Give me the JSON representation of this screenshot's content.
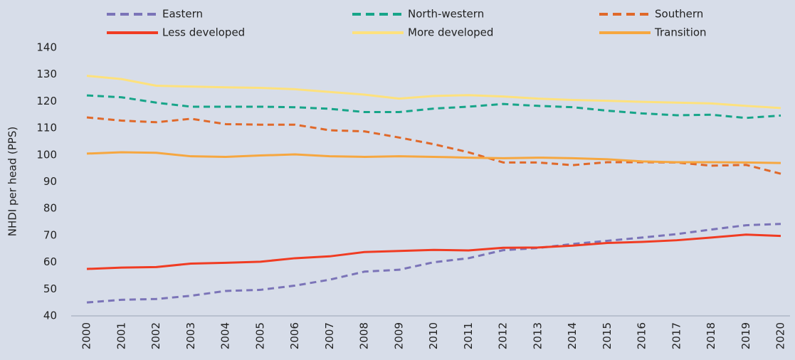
{
  "chart_data": {
    "type": "line",
    "y_label": "NHDI per head (PPS)",
    "categories": [
      "2000",
      "2001",
      "2002",
      "2003",
      "2004",
      "2005",
      "2006",
      "2007",
      "2008",
      "2009",
      "2010",
      "2011",
      "2012",
      "2013",
      "2014",
      "2015",
      "2016",
      "2017",
      "2018",
      "2019",
      "2020"
    ],
    "series": [
      {
        "name": "Eastern",
        "color": "#7b74b8",
        "dashed": true,
        "values": [
          45,
          46,
          46.3,
          47.5,
          49.3,
          49.7,
          51.3,
          53.5,
          56.5,
          57.2,
          60,
          61.5,
          64.5,
          65.3,
          66.8,
          68,
          69.2,
          70.5,
          72.2,
          73.8,
          74.3
        ]
      },
      {
        "name": "North-western",
        "color": "#17a589",
        "dashed": true,
        "values": [
          122.2,
          121.5,
          119.5,
          118,
          118,
          118,
          117.8,
          117.2,
          116,
          116,
          117.3,
          118,
          119,
          118.3,
          117.8,
          116.5,
          115.5,
          114.8,
          115,
          113.8,
          114.7
        ]
      },
      {
        "name": "Southern",
        "color": "#e0692a",
        "dashed": true,
        "values": [
          114,
          112.8,
          112.2,
          113.5,
          111.5,
          111.3,
          111.3,
          109.2,
          108.8,
          106.5,
          104,
          101,
          97.2,
          97.2,
          96.2,
          97.3,
          97.3,
          97.2,
          96,
          96.3,
          93
        ]
      },
      {
        "name": "Less developed",
        "color": "#f03c23",
        "dashed": false,
        "values": [
          57.5,
          58,
          58.2,
          59.5,
          59.8,
          60.2,
          61.5,
          62.2,
          63.8,
          64.2,
          64.6,
          64.4,
          65.4,
          65.5,
          66.2,
          67.2,
          67.6,
          68.2,
          69.2,
          70.3,
          69.8
        ]
      },
      {
        "name": "More developed",
        "color": "#fde17d",
        "dashed": false,
        "values": [
          129.5,
          128.3,
          125.8,
          125.5,
          125.2,
          125,
          124.5,
          123.5,
          122.5,
          121,
          122,
          122.3,
          121.8,
          121,
          120.5,
          120.2,
          119.8,
          119.5,
          119.2,
          118.3,
          117.5
        ]
      },
      {
        "name": "Transition",
        "color": "#f6a740",
        "dashed": false,
        "values": [
          100.5,
          101,
          100.8,
          99.5,
          99.3,
          99.8,
          100.2,
          99.5,
          99.3,
          99.5,
          99.3,
          99,
          98.8,
          99,
          98.8,
          98.4,
          97.6,
          97.3,
          97.3,
          97.2,
          97
        ]
      }
    ],
    "ylim": [
      40,
      140
    ],
    "yticks": [
      40,
      50,
      60,
      70,
      80,
      90,
      100,
      110,
      120,
      130,
      140
    ],
    "grid": false,
    "legend": "top"
  }
}
